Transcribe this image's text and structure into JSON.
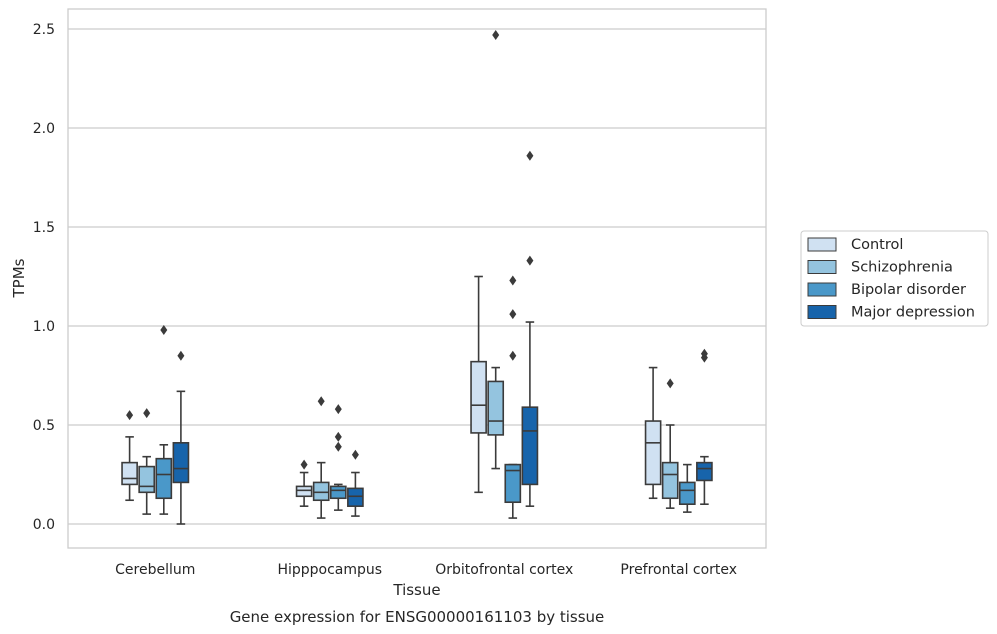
{
  "chart_data": {
    "type": "box",
    "title": "",
    "caption": "Gene expression for ENSG00000161103 by tissue",
    "xlabel": "Tissue",
    "ylabel": "TPMs",
    "ylim": [
      -0.12,
      2.6
    ],
    "yticks": [
      0.0,
      0.5,
      1.0,
      1.5,
      2.0,
      2.5
    ],
    "ytick_labels": [
      "0.0",
      "0.5",
      "1.0",
      "1.5",
      "2.0",
      "2.5"
    ],
    "grid": "horizontal",
    "legend_position": "right",
    "categories": [
      "Cerebellum",
      "Hipppocampus",
      "Orbitofrontal cortex",
      "Prefrontal cortex"
    ],
    "series": [
      {
        "name": "Control",
        "color": "#d0e1f2",
        "boxes": [
          {
            "whisker_low": 0.12,
            "q1": 0.2,
            "median": 0.23,
            "q3": 0.31,
            "whisker_high": 0.44,
            "outliers": [
              0.55
            ]
          },
          {
            "whisker_low": 0.09,
            "q1": 0.14,
            "median": 0.17,
            "q3": 0.19,
            "whisker_high": 0.26,
            "outliers": [
              0.3
            ]
          },
          {
            "whisker_low": 0.16,
            "q1": 0.46,
            "median": 0.6,
            "q3": 0.82,
            "whisker_high": 1.25,
            "outliers": []
          },
          {
            "whisker_low": 0.13,
            "q1": 0.2,
            "median": 0.41,
            "q3": 0.52,
            "whisker_high": 0.79,
            "outliers": []
          }
        ]
      },
      {
        "name": "Schizophrenia",
        "color": "#94c4df",
        "boxes": [
          {
            "whisker_low": 0.05,
            "q1": 0.16,
            "median": 0.19,
            "q3": 0.29,
            "whisker_high": 0.34,
            "outliers": [
              0.56
            ]
          },
          {
            "whisker_low": 0.03,
            "q1": 0.12,
            "median": 0.16,
            "q3": 0.21,
            "whisker_high": 0.31,
            "outliers": [
              0.62
            ]
          },
          {
            "whisker_low": 0.28,
            "q1": 0.45,
            "median": 0.52,
            "q3": 0.72,
            "whisker_high": 0.79,
            "outliers": [
              2.47
            ]
          },
          {
            "whisker_low": 0.08,
            "q1": 0.13,
            "median": 0.25,
            "q3": 0.31,
            "whisker_high": 0.5,
            "outliers": [
              0.71
            ]
          }
        ]
      },
      {
        "name": "Bipolar disorder",
        "color": "#4a98c9",
        "boxes": [
          {
            "whisker_low": 0.05,
            "q1": 0.13,
            "median": 0.25,
            "q3": 0.33,
            "whisker_high": 0.4,
            "outliers": [
              0.98
            ]
          },
          {
            "whisker_low": 0.07,
            "q1": 0.13,
            "median": 0.17,
            "q3": 0.19,
            "whisker_high": 0.2,
            "outliers": [
              0.58,
              0.44,
              0.39
            ]
          },
          {
            "whisker_low": 0.03,
            "q1": 0.11,
            "median": 0.27,
            "q3": 0.3,
            "whisker_high": 0.3,
            "outliers": [
              1.23,
              1.06,
              0.85
            ]
          },
          {
            "whisker_low": 0.06,
            "q1": 0.1,
            "median": 0.17,
            "q3": 0.21,
            "whisker_high": 0.3,
            "outliers": []
          }
        ]
      },
      {
        "name": "Major depression",
        "color": "#1764ab",
        "boxes": [
          {
            "whisker_low": 0.0,
            "q1": 0.21,
            "median": 0.28,
            "q3": 0.41,
            "whisker_high": 0.67,
            "outliers": [
              0.85
            ]
          },
          {
            "whisker_low": 0.04,
            "q1": 0.09,
            "median": 0.14,
            "q3": 0.18,
            "whisker_high": 0.26,
            "outliers": [
              0.35
            ]
          },
          {
            "whisker_low": 0.09,
            "q1": 0.2,
            "median": 0.47,
            "q3": 0.59,
            "whisker_high": 1.02,
            "outliers": [
              1.86,
              1.33
            ]
          },
          {
            "whisker_low": 0.1,
            "q1": 0.22,
            "median": 0.28,
            "q3": 0.31,
            "whisker_high": 0.34,
            "outliers": [
              0.86,
              0.84
            ]
          }
        ]
      }
    ]
  }
}
